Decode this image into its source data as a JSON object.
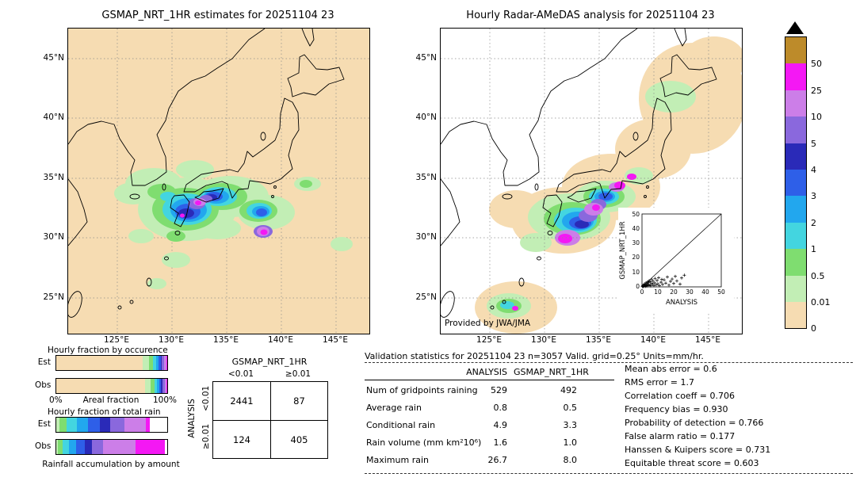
{
  "left_map": {
    "title": "GSMAP_NRT_1HR estimates for 20251104 23"
  },
  "right_map": {
    "title": "Hourly Radar-AMeDAS analysis for 20251104 23",
    "credit": "Provided by JWA/JMA",
    "inset": {
      "xlabel": "ANALYSIS",
      "ylabel": "GSMAP_NRT_1HR",
      "xticks": [
        "0",
        "10",
        "20",
        "30",
        "40",
        "50"
      ],
      "yticks": [
        "0",
        "10",
        "20",
        "30",
        "40",
        "50"
      ]
    }
  },
  "axes": {
    "lat_ticks": [
      "45°N",
      "40°N",
      "35°N",
      "30°N",
      "25°N"
    ],
    "lon_ticks": [
      "125°E",
      "130°E",
      "135°E",
      "140°E",
      "145°E"
    ]
  },
  "colorbar": {
    "labels": [
      "50",
      "25",
      "10",
      "5",
      "4",
      "3",
      "2",
      "1",
      "0.5",
      "0.01",
      "0"
    ],
    "colors_top_to_bottom": [
      "#bd8b2a",
      "#f418f4",
      "#cc7ee8",
      "#8a68dd",
      "#2a2ab8",
      "#2e5fe8",
      "#22a7ee",
      "#43d5e0",
      "#7fdd70",
      "#c2eeb5",
      "#f6dcb2"
    ]
  },
  "fractions": {
    "occurrence_title": "Hourly fraction by occurence",
    "totalrain_title": "Hourly fraction of total rain",
    "row_labels": [
      "Est",
      "Obs"
    ],
    "axis_left": "0%",
    "axis_center": "Areal fraction",
    "axis_right": "100%",
    "footer": "Rainfall accumulation by amount",
    "occurrence": {
      "est": [
        {
          "color": "#f6dcb2",
          "pct": 78
        },
        {
          "color": "#c2eeb5",
          "pct": 5.5
        },
        {
          "color": "#7fdd70",
          "pct": 3.5
        },
        {
          "color": "#43d5e0",
          "pct": 3
        },
        {
          "color": "#22a7ee",
          "pct": 2.2
        },
        {
          "color": "#2e5fe8",
          "pct": 1.8
        },
        {
          "color": "#2a2ab8",
          "pct": 1.3
        },
        {
          "color": "#8a68dd",
          "pct": 2
        },
        {
          "color": "#cc7ee8",
          "pct": 1.7
        },
        {
          "color": "#f418f4",
          "pct": 1
        }
      ],
      "obs": [
        {
          "color": "#f6dcb2",
          "pct": 80
        },
        {
          "color": "#c2eeb5",
          "pct": 5.2
        },
        {
          "color": "#7fdd70",
          "pct": 3.2
        },
        {
          "color": "#43d5e0",
          "pct": 2.6
        },
        {
          "color": "#22a7ee",
          "pct": 2
        },
        {
          "color": "#2e5fe8",
          "pct": 1.6
        },
        {
          "color": "#2a2ab8",
          "pct": 1.2
        },
        {
          "color": "#8a68dd",
          "pct": 1.8
        },
        {
          "color": "#cc7ee8",
          "pct": 1.5
        },
        {
          "color": "#f418f4",
          "pct": 0.9
        }
      ]
    },
    "totalrain": {
      "est": [
        {
          "color": "#c2eeb5",
          "pct": 2.5
        },
        {
          "color": "#7fdd70",
          "pct": 7
        },
        {
          "color": "#43d5e0",
          "pct": 9
        },
        {
          "color": "#22a7ee",
          "pct": 10
        },
        {
          "color": "#2e5fe8",
          "pct": 11
        },
        {
          "color": "#2a2ab8",
          "pct": 9
        },
        {
          "color": "#8a68dd",
          "pct": 13
        },
        {
          "color": "#cc7ee8",
          "pct": 19
        },
        {
          "color": "#f418f4",
          "pct": 4
        }
      ],
      "obs": [
        {
          "color": "#c2eeb5",
          "pct": 1.5
        },
        {
          "color": "#7fdd70",
          "pct": 4.5
        },
        {
          "color": "#43d5e0",
          "pct": 5.5
        },
        {
          "color": "#22a7ee",
          "pct": 6.5
        },
        {
          "color": "#2e5fe8",
          "pct": 7.5
        },
        {
          "color": "#2a2ab8",
          "pct": 6.5
        },
        {
          "color": "#8a68dd",
          "pct": 10.5
        },
        {
          "color": "#cc7ee8",
          "pct": 29
        },
        {
          "color": "#f418f4",
          "pct": 26.5
        }
      ]
    }
  },
  "contingency": {
    "title": "GSMAP_NRT_1HR",
    "side_label": "ANALYSIS",
    "col_headers": [
      "<0.01",
      "≥0.01"
    ],
    "row_headers": [
      "<0.01",
      "≥0.01"
    ],
    "cells": [
      [
        "2441",
        "87"
      ],
      [
        "124",
        "405"
      ]
    ]
  },
  "stats": {
    "title": "Validation statistics for 20251104 23  n=3057 Valid. grid=0.25° Units=mm/hr.",
    "col_headers": [
      "ANALYSIS",
      "GSMAP_NRT_1HR"
    ],
    "rows": [
      {
        "label": "Num of gridpoints raining",
        "a": "529",
        "g": "492"
      },
      {
        "label": "Average rain",
        "a": "0.8",
        "g": "0.5"
      },
      {
        "label": "Conditional rain",
        "a": "4.9",
        "g": "3.3"
      },
      {
        "label": "Rain volume (mm km²10⁶)",
        "a": "1.6",
        "g": "1.0"
      },
      {
        "label": "Maximum rain",
        "a": "26.7",
        "g": "8.0"
      }
    ],
    "metrics": [
      "Mean abs error =  0.6",
      "RMS error =  1.7",
      "Correlation coeff =  0.706",
      "Frequency bias =  0.930",
      "Probability of detection =  0.766",
      "False alarm ratio =  0.177",
      "Hanssen & Kuipers score =  0.731",
      "Equitable threat score =  0.603"
    ]
  },
  "chart_data": [
    {
      "type": "table",
      "title": "Contingency table (number of gridpoints)",
      "row_axis": "ANALYSIS",
      "col_axis": "GSMAP_NRT_1HR",
      "row_labels": [
        "<0.01",
        "≥0.01"
      ],
      "col_labels": [
        "<0.01",
        "≥0.01"
      ],
      "values": [
        [
          2441,
          87
        ],
        [
          124,
          405
        ]
      ]
    },
    {
      "type": "table",
      "title": "Validation statistics for 20251104 23",
      "n": 3057,
      "grid": "0.25°",
      "units": "mm/hr",
      "columns": [
        "ANALYSIS",
        "GSMAP_NRT_1HR"
      ],
      "row_labels": [
        "Num of gridpoints raining",
        "Average rain",
        "Conditional rain",
        "Rain volume (mm km²10⁶)",
        "Maximum rain"
      ],
      "values": [
        [
          529,
          492
        ],
        [
          0.8,
          0.5
        ],
        [
          4.9,
          3.3
        ],
        [
          1.6,
          1.0
        ],
        [
          26.7,
          8.0
        ]
      ]
    },
    {
      "type": "table",
      "title": "Validation scores",
      "row_labels": [
        "Mean abs error",
        "RMS error",
        "Correlation coeff",
        "Frequency bias",
        "Probability of detection",
        "False alarm ratio",
        "Hanssen & Kuipers score",
        "Equitable threat score"
      ],
      "values": [
        [
          0.6
        ],
        [
          1.7
        ],
        [
          0.706
        ],
        [
          0.93
        ],
        [
          0.766
        ],
        [
          0.177
        ],
        [
          0.731
        ],
        [
          0.603
        ]
      ]
    },
    {
      "type": "bar",
      "title": "Hourly fraction by occurence (areal fraction %, stacked, values estimated from pixels)",
      "categories": [
        "0",
        "0.01-0.5",
        "0.5-1",
        "1-2",
        "2-3",
        "3-4",
        "4-5",
        "5-10",
        "10-25",
        "25-50"
      ],
      "series": [
        {
          "name": "Est",
          "values": [
            78,
            5.5,
            3.5,
            3,
            2.2,
            1.8,
            1.3,
            2,
            1.7,
            1
          ]
        },
        {
          "name": "Obs",
          "values": [
            80,
            5.2,
            3.2,
            2.6,
            2,
            1.6,
            1.2,
            1.8,
            1.5,
            0.9
          ]
        }
      ],
      "xlabel": "Areal fraction",
      "xlim": [
        0,
        100
      ]
    },
    {
      "type": "bar",
      "title": "Hourly fraction of total rain (rainfall accumulation by amount %, stacked, values estimated from pixels)",
      "categories": [
        "0.01-0.5",
        "0.5-1",
        "1-2",
        "2-3",
        "3-4",
        "4-5",
        "5-10",
        "10-25",
        "25-50"
      ],
      "series": [
        {
          "name": "Est",
          "values": [
            2.5,
            7,
            9,
            10,
            11,
            9,
            13,
            19,
            4
          ]
        },
        {
          "name": "Obs",
          "values": [
            1.5,
            4.5,
            5.5,
            6.5,
            7.5,
            6.5,
            10.5,
            29,
            26.5
          ]
        }
      ],
      "xlim": [
        0,
        100
      ]
    },
    {
      "type": "scatter",
      "title": "GSMAP_NRT_1HR vs ANALYSIS (inset, points estimated)",
      "xlabel": "ANALYSIS",
      "ylabel": "GSMAP_NRT_1HR",
      "xlim": [
        0,
        50
      ],
      "ylim": [
        0,
        50
      ],
      "points": [
        [
          0.3,
          0.2
        ],
        [
          0.5,
          0.8
        ],
        [
          0.8,
          0.3
        ],
        [
          1,
          1.2
        ],
        [
          1.2,
          0.5
        ],
        [
          1.5,
          2
        ],
        [
          1.8,
          0.9
        ],
        [
          2,
          1.5
        ],
        [
          2.2,
          0.4
        ],
        [
          2.5,
          2.8
        ],
        [
          2.8,
          1.1
        ],
        [
          3,
          0.6
        ],
        [
          3.2,
          2.2
        ],
        [
          3.5,
          3.4
        ],
        [
          3.8,
          1.6
        ],
        [
          4,
          0.8
        ],
        [
          4.2,
          2.9
        ],
        [
          4.5,
          4.2
        ],
        [
          5,
          1.3
        ],
        [
          5.2,
          3.6
        ],
        [
          5.5,
          0.7
        ],
        [
          6,
          2.4
        ],
        [
          6.2,
          5
        ],
        [
          6.8,
          1.8
        ],
        [
          7,
          3.9
        ],
        [
          7.5,
          0.9
        ],
        [
          8,
          2.7
        ],
        [
          8.2,
          5.8
        ],
        [
          9,
          1.4
        ],
        [
          9.5,
          4.4
        ],
        [
          10,
          2.1
        ],
        [
          10.5,
          6.3
        ],
        [
          11,
          0.8
        ],
        [
          12,
          3.2
        ],
        [
          12.5,
          5.1
        ],
        [
          13,
          1.7
        ],
        [
          14,
          4.8
        ],
        [
          15,
          2.6
        ],
        [
          16,
          6.8
        ],
        [
          17,
          1.2
        ],
        [
          18,
          3.8
        ],
        [
          19,
          5.4
        ],
        [
          20,
          2.3
        ],
        [
          21,
          7.2
        ],
        [
          22,
          4.1
        ],
        [
          24,
          1.9
        ],
        [
          25,
          6.1
        ],
        [
          26.7,
          8
        ]
      ]
    },
    {
      "type": "heatmap",
      "title": "Precipitation color scale (mm/hr)",
      "levels": [
        0,
        0.01,
        0.5,
        1,
        2,
        3,
        4,
        5,
        10,
        25,
        50
      ],
      "colors_bottom_to_top": [
        "#f6dcb2",
        "#c2eeb5",
        "#7fdd70",
        "#43d5e0",
        "#22a7ee",
        "#2e5fe8",
        "#2a2ab8",
        "#8a68dd",
        "#cc7ee8",
        "#f418f4",
        "#bd8b2a"
      ]
    }
  ]
}
